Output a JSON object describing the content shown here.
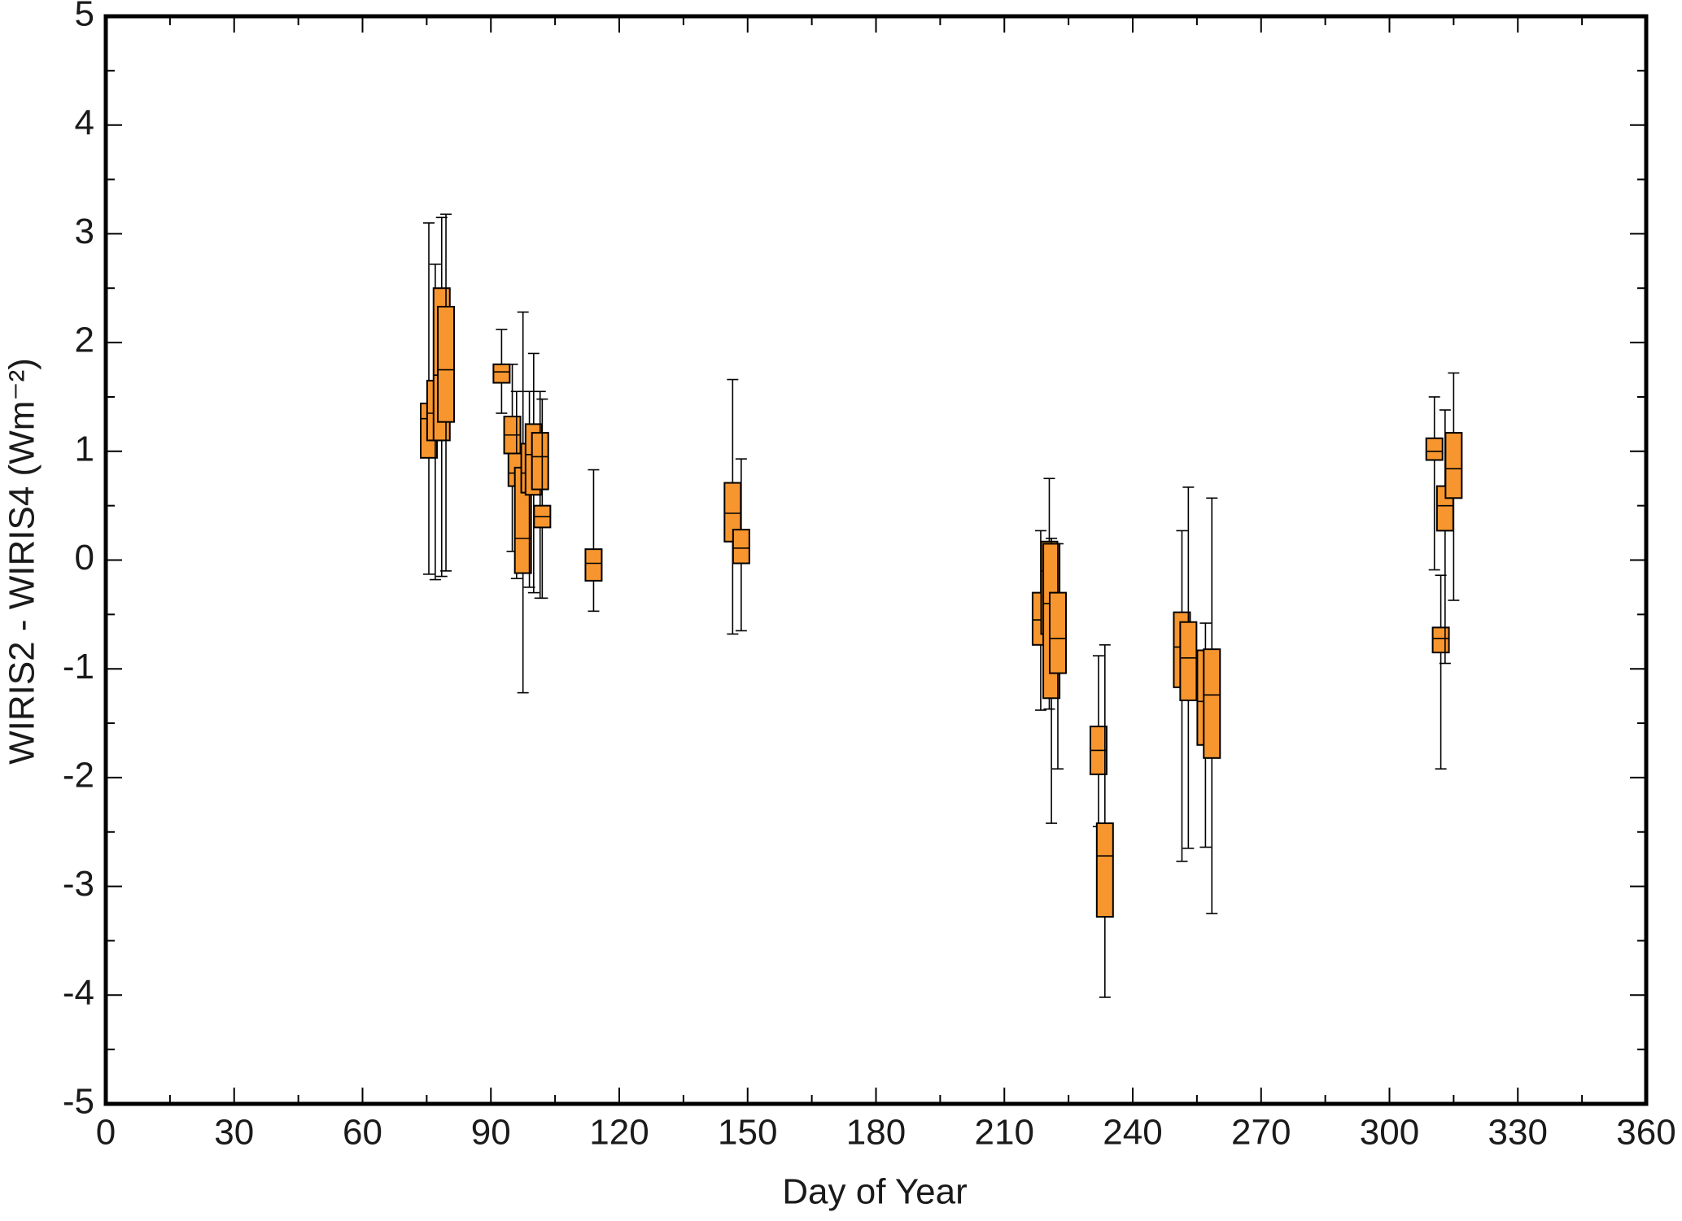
{
  "chart_data": {
    "type": "box",
    "xlabel": "Day of Year",
    "ylabel": "WIRIS2 - WIRIS4 (Wm⁻²)",
    "xlim": [
      0,
      360
    ],
    "xticks": [
      0,
      30,
      60,
      90,
      120,
      150,
      180,
      210,
      240,
      270,
      300,
      330,
      360
    ],
    "ylim": [
      -5,
      5
    ],
    "yticks": [
      -5,
      -4,
      -3,
      -2,
      -1,
      0,
      1,
      2,
      3,
      4,
      5
    ],
    "color": "#f7962f",
    "x": [
      75.5,
      77,
      78.5,
      79.5,
      92.5,
      95,
      96,
      97.5,
      99,
      100,
      101.5,
      102,
      114,
      146.5,
      148.5,
      218.5,
      220.5,
      221,
      222.5,
      232,
      233.5,
      251.5,
      253,
      257,
      258.5,
      310.5,
      312,
      313,
      315
    ],
    "min": [
      -0.13,
      -0.18,
      -0.15,
      -0.1,
      1.35,
      0.08,
      -0.17,
      -1.22,
      -0.25,
      -0.3,
      -0.35,
      -0.35,
      -0.47,
      -0.68,
      -0.65,
      -1.38,
      -1.37,
      -2.42,
      -1.92,
      -2.45,
      -4.02,
      -2.77,
      -2.65,
      -2.64,
      -3.25,
      -0.09,
      -1.92,
      -0.95,
      -0.37
    ],
    "q1": [
      0.94,
      1.1,
      1.1,
      1.27,
      1.63,
      0.98,
      0.68,
      -0.12,
      0.62,
      0.6,
      0.65,
      0.3,
      -0.19,
      0.17,
      -0.03,
      -0.78,
      -0.68,
      -1.27,
      -1.04,
      -1.97,
      -3.28,
      -1.17,
      -1.29,
      -1.7,
      -1.82,
      0.92,
      -0.85,
      0.27,
      0.57
    ],
    "median": [
      1.3,
      1.35,
      1.7,
      1.75,
      1.73,
      1.15,
      0.8,
      0.2,
      0.8,
      0.97,
      0.95,
      0.4,
      -0.03,
      0.43,
      0.11,
      -0.55,
      -0.1,
      -0.4,
      -0.72,
      -1.75,
      -2.72,
      -0.8,
      -0.9,
      -1.3,
      -1.24,
      1.0,
      -0.72,
      0.5,
      0.84
    ],
    "q3": [
      1.44,
      1.65,
      2.5,
      2.33,
      1.8,
      1.32,
      0.98,
      0.85,
      1.07,
      1.25,
      1.17,
      0.5,
      0.1,
      0.71,
      0.28,
      -0.3,
      0.17,
      0.15,
      -0.3,
      -1.53,
      -2.42,
      -0.48,
      -0.57,
      -0.83,
      -0.82,
      1.12,
      -0.62,
      0.68,
      1.17
    ],
    "max": [
      3.1,
      2.72,
      3.15,
      3.18,
      2.12,
      1.8,
      1.55,
      2.28,
      1.55,
      1.9,
      1.55,
      1.48,
      0.83,
      1.66,
      0.93,
      0.27,
      0.75,
      0.2,
      0.15,
      -0.88,
      -0.78,
      0.27,
      0.67,
      -0.58,
      0.57,
      1.5,
      -0.14,
      1.38,
      1.72
    ]
  }
}
